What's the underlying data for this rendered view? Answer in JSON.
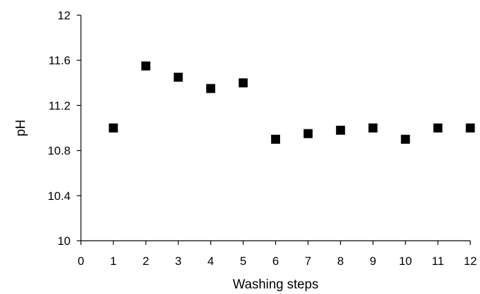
{
  "chart_data": {
    "type": "scatter",
    "title": "",
    "xlabel": "Washing steps",
    "ylabel": "pH",
    "xlim": [
      0,
      12
    ],
    "ylim": [
      10,
      12
    ],
    "x_ticks": [
      0,
      1,
      2,
      3,
      4,
      5,
      6,
      7,
      8,
      9,
      10,
      11,
      12
    ],
    "y_ticks": [
      "10",
      "10.4",
      "10.8",
      "11.2",
      "11.6",
      "12"
    ],
    "grid": false,
    "legend": "none",
    "marker": "square",
    "marker_color": "#000000",
    "series": [
      {
        "x": [
          1,
          2,
          3,
          4,
          5,
          6,
          7,
          8,
          9,
          10,
          11,
          12
        ],
        "y": [
          11.0,
          11.55,
          11.45,
          11.35,
          11.4,
          10.9,
          10.95,
          10.98,
          11.0,
          10.9,
          11.0,
          11.0
        ]
      }
    ]
  }
}
